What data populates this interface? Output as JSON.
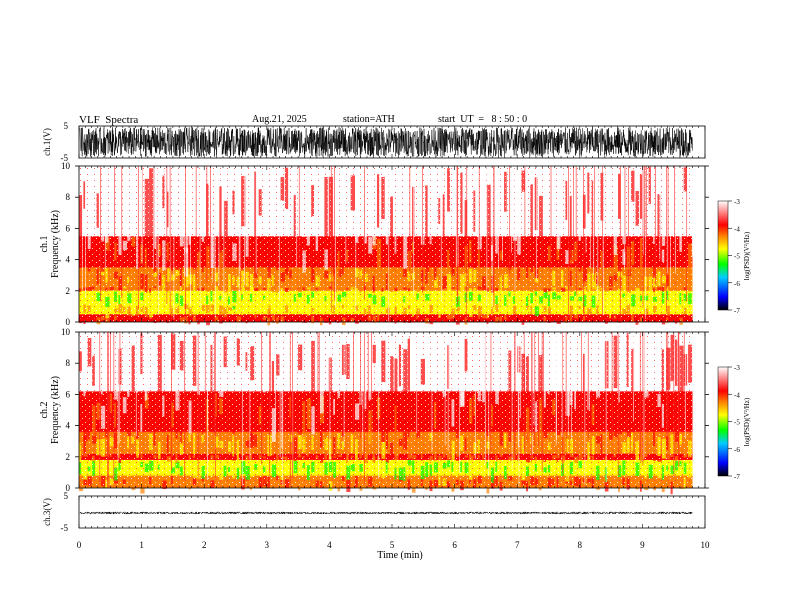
{
  "header": {
    "title": "VLF  Spectra",
    "date": "Aug.21, 2025",
    "station": "station=ATH",
    "start": "start  UT  =   8 : 50 : 0"
  },
  "chart_data": [
    {
      "type": "line",
      "panel": "ch1-waveform",
      "ylabel": "ch.1(V)",
      "ylim": [
        -5,
        5
      ],
      "yticks": [
        "5",
        "-5"
      ],
      "xlim": [
        0,
        10
      ],
      "signal": "dense noise filling approx -4.5 to 4.5 V across 0-9.8 min"
    },
    {
      "type": "heatmap",
      "panel": "ch1-spectrogram",
      "ylabel_top": "ch.1",
      "ylabel": "Frequency  (kHz)",
      "ylim": [
        0,
        10
      ],
      "yticks": [
        "0",
        "2",
        "4",
        "6",
        "8",
        "10"
      ],
      "xlim": [
        0,
        9.8
      ],
      "colorbar": {
        "label": "log(PSD)(V²/Hz)",
        "range": [
          -7,
          -3
        ],
        "ticks": [
          "-3",
          "-4",
          "-5",
          "-6",
          "-7"
        ]
      },
      "bands_kHz_logPSD": [
        {
          "f": [
            0,
            0.5
          ],
          "value": -3.9
        },
        {
          "f": [
            0.5,
            1.2
          ],
          "value": -4.6
        },
        {
          "f": [
            1.2,
            2.0
          ],
          "value": -5.0
        },
        {
          "f": [
            2.0,
            2.3
          ],
          "value": -4.2
        },
        {
          "f": [
            2.3,
            3.5
          ],
          "value": -4.4
        },
        {
          "f": [
            3.5,
            5.5
          ],
          "value": -3.8
        },
        {
          "f": [
            5.5,
            10
          ],
          "value": -3.3
        }
      ]
    },
    {
      "type": "heatmap",
      "panel": "ch2-spectrogram",
      "ylabel_top": "ch.2",
      "ylabel": "Frequency  (kHz)",
      "ylim": [
        0,
        10
      ],
      "yticks": [
        "0",
        "2",
        "4",
        "6",
        "8",
        "10"
      ],
      "xlim": [
        0,
        9.8
      ],
      "colorbar": {
        "label": "log(PSD)(V²/Hz)",
        "range": [
          -7,
          -3
        ],
        "ticks": [
          "-3",
          "-4",
          "-5",
          "-6",
          "-7"
        ]
      },
      "bands_kHz_logPSD": [
        {
          "f": [
            0,
            0.8
          ],
          "value": -4.1
        },
        {
          "f": [
            0.8,
            1.8
          ],
          "value": -5.0
        },
        {
          "f": [
            1.8,
            2.2
          ],
          "value": -4.0
        },
        {
          "f": [
            2.2,
            3.6
          ],
          "value": -4.4
        },
        {
          "f": [
            3.6,
            6.2
          ],
          "value": -3.8
        },
        {
          "f": [
            6.2,
            10
          ],
          "value": -3.3
        }
      ]
    },
    {
      "type": "line",
      "panel": "ch3-waveform",
      "ylabel": "ch.3(V)",
      "ylim": [
        -5,
        5
      ],
      "yticks": [
        "5",
        "-5"
      ],
      "xlim": [
        0,
        10
      ],
      "signal": "nearly flat trace around -0.3 V across 0-9.8 min"
    }
  ],
  "xaxis": {
    "label": "Time  (min)",
    "ticks": [
      "0",
      "1",
      "2",
      "3",
      "4",
      "5",
      "6",
      "7",
      "8",
      "9",
      "10"
    ]
  },
  "colors": {
    "colormap": [
      "#000000",
      "#0000ff",
      "#00ccff",
      "#00ff00",
      "#ffff00",
      "#ff8000",
      "#ff0000",
      "#ffffff"
    ]
  }
}
